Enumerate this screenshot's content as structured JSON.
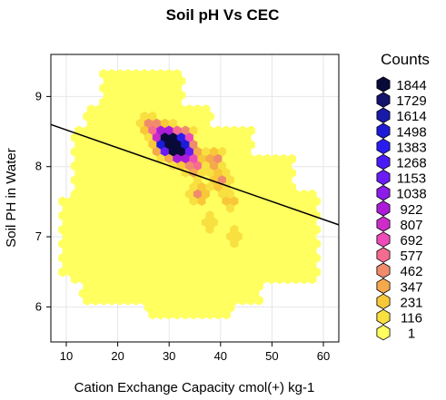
{
  "chart_data": {
    "type": "heatmap",
    "subtype": "hexbin",
    "title": "Soil pH  Vs CEC",
    "xlabel": "Cation Exchange Capacity cmol(+) kg-1",
    "ylabel": "Soil PH in Water",
    "xlim": [
      7,
      63
    ],
    "ylim": [
      5.5,
      9.6
    ],
    "xticks": [
      10,
      20,
      30,
      40,
      50,
      60
    ],
    "yticks": [
      6,
      7,
      8,
      9
    ],
    "grid": true,
    "regression_line": {
      "x": [
        7,
        63
      ],
      "y": [
        8.6,
        7.17
      ]
    },
    "legend": {
      "title": "Counts",
      "placement": "right",
      "levels": [
        1844,
        1729,
        1614,
        1498,
        1383,
        1268,
        1153,
        1038,
        922,
        807,
        692,
        577,
        462,
        347,
        231,
        116,
        1
      ],
      "colors": [
        "#0a0a3a",
        "#14146e",
        "#1a1aa8",
        "#1c1cd8",
        "#2a1cf0",
        "#4a1cf5",
        "#6a1cf5",
        "#8c1ce8",
        "#ac1cd8",
        "#cc2cc8",
        "#ee4cb8",
        "#f56c90",
        "#f08c6c",
        "#f5a84c",
        "#f8c838",
        "#f8e040",
        "#ffff60"
      ]
    },
    "hotspots": [
      {
        "x": 31,
        "y": 8.3,
        "count": 1844
      },
      {
        "x": 30,
        "y": 8.4,
        "count": 1498
      },
      {
        "x": 32,
        "y": 8.2,
        "count": 1268
      },
      {
        "x": 29,
        "y": 8.3,
        "count": 1153
      },
      {
        "x": 33,
        "y": 8.4,
        "count": 922
      },
      {
        "x": 34,
        "y": 8.2,
        "count": 807
      },
      {
        "x": 28,
        "y": 8.5,
        "count": 692
      },
      {
        "x": 35,
        "y": 8.0,
        "count": 577
      },
      {
        "x": 39,
        "y": 8.1,
        "count": 577
      },
      {
        "x": 26,
        "y": 8.6,
        "count": 462
      },
      {
        "x": 36,
        "y": 7.6,
        "count": 462
      },
      {
        "x": 40,
        "y": 7.8,
        "count": 462
      },
      {
        "x": 42,
        "y": 7.5,
        "count": 347
      },
      {
        "x": 43,
        "y": 7.0,
        "count": 231
      },
      {
        "x": 38,
        "y": 7.2,
        "count": 231
      }
    ]
  }
}
